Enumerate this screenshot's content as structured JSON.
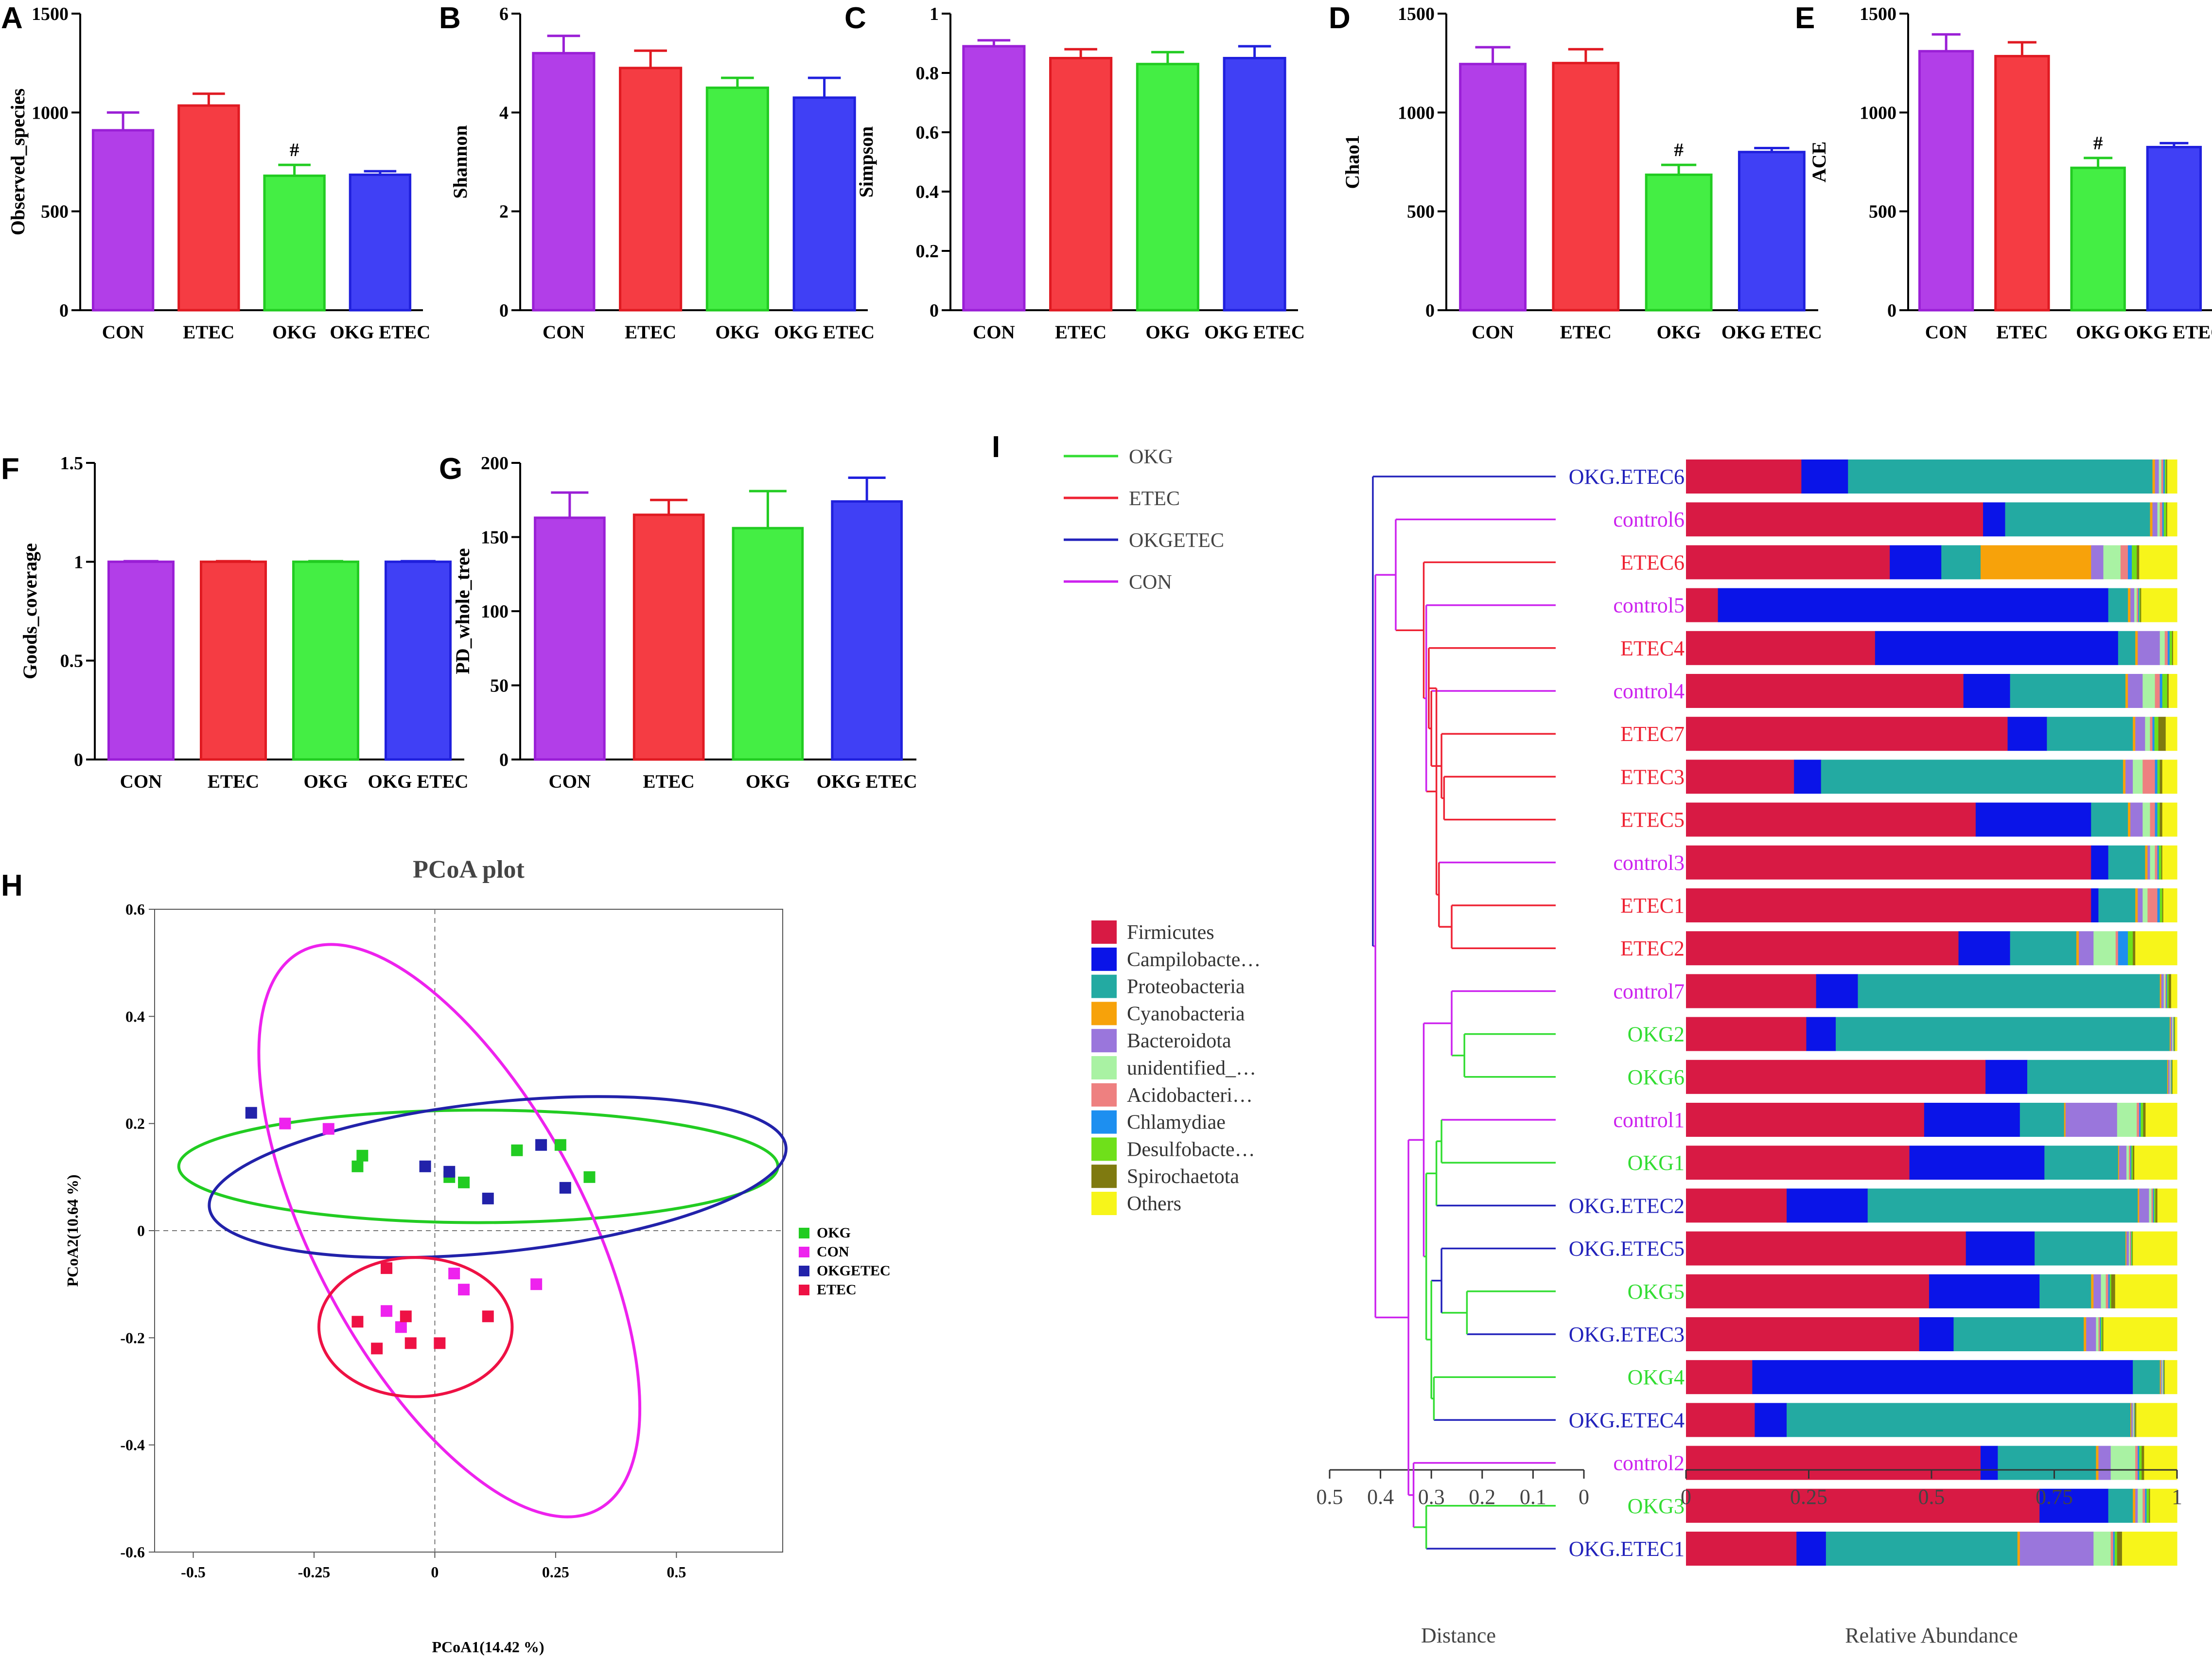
{
  "figure": {
    "panel_letters": [
      "A",
      "B",
      "C",
      "D",
      "E",
      "F",
      "G",
      "H",
      "I"
    ]
  },
  "chart_data": [
    {
      "panel": "A",
      "type": "bar",
      "ylabel": "Observed_species",
      "categories": [
        "CON",
        "ETEC",
        "OKG",
        "OKG ETEC"
      ],
      "values": [
        910,
        1035,
        680,
        685
      ],
      "errors": [
        90,
        60,
        55,
        18
      ],
      "ylim": [
        0,
        1500
      ],
      "yticks": [
        0,
        500,
        1000,
        1500
      ],
      "annotations": [
        "",
        "",
        "#",
        ""
      ]
    },
    {
      "panel": "B",
      "type": "bar",
      "ylabel": "Shannon",
      "categories": [
        "CON",
        "ETEC",
        "OKG",
        "OKG ETEC"
      ],
      "values": [
        5.2,
        4.9,
        4.5,
        4.3
      ],
      "errors": [
        0.35,
        0.35,
        0.2,
        0.4
      ],
      "ylim": [
        0,
        6
      ],
      "yticks": [
        0,
        2,
        4,
        6
      ],
      "annotations": [
        "",
        "",
        "",
        ""
      ]
    },
    {
      "panel": "C",
      "type": "bar",
      "ylabel": "Simpson",
      "categories": [
        "CON",
        "ETEC",
        "OKG",
        "OKG ETEC"
      ],
      "values": [
        0.89,
        0.85,
        0.83,
        0.85
      ],
      "errors": [
        0.02,
        0.03,
        0.04,
        0.04
      ],
      "ylim": [
        0,
        1.0
      ],
      "yticks": [
        0.0,
        0.2,
        0.4,
        0.6,
        0.8,
        1.0
      ],
      "annotations": [
        "",
        "",
        "",
        ""
      ]
    },
    {
      "panel": "D",
      "type": "bar",
      "ylabel": "Chao1",
      "categories": [
        "CON",
        "ETEC",
        "OKG",
        "OKG ETEC"
      ],
      "values": [
        1245,
        1250,
        685,
        800
      ],
      "errors": [
        85,
        70,
        50,
        20
      ],
      "ylim": [
        0,
        1500
      ],
      "yticks": [
        0,
        500,
        1000,
        1500
      ],
      "annotations": [
        "",
        "",
        "#",
        ""
      ]
    },
    {
      "panel": "E",
      "type": "bar",
      "ylabel": "ACE",
      "categories": [
        "CON",
        "ETEC",
        "OKG",
        "OKG ETEC"
      ],
      "values": [
        1310,
        1285,
        720,
        825
      ],
      "errors": [
        85,
        70,
        50,
        20
      ],
      "ylim": [
        0,
        1500
      ],
      "yticks": [
        0,
        500,
        1000,
        1500
      ],
      "annotations": [
        "",
        "",
        "#",
        ""
      ]
    },
    {
      "panel": "F",
      "type": "bar",
      "ylabel": "Goods_coverage",
      "categories": [
        "CON",
        "ETEC",
        "OKG",
        "OKG ETEC"
      ],
      "values": [
        1.0,
        1.0,
        1.0,
        1.0
      ],
      "errors": [
        0.003,
        0.003,
        0.003,
        0.003
      ],
      "ylim": [
        0,
        1.5
      ],
      "yticks": [
        0.0,
        0.5,
        1.0,
        1.5
      ],
      "annotations": [
        "",
        "",
        "",
        ""
      ]
    },
    {
      "panel": "G",
      "type": "bar",
      "ylabel": "PD_whole_tree",
      "categories": [
        "CON",
        "ETEC",
        "OKG",
        "OKG ETEC"
      ],
      "values": [
        163,
        165,
        156,
        174
      ],
      "errors": [
        17,
        10,
        25,
        16
      ],
      "ylim": [
        0,
        200
      ],
      "yticks": [
        0,
        50,
        100,
        150,
        200
      ],
      "annotations": [
        "",
        "",
        "",
        ""
      ]
    },
    {
      "panel": "H",
      "type": "scatter",
      "title": "PCoA plot",
      "xlabel": "PCoA1(14.42 %)",
      "ylabel": "PCoA2(10.64 %)",
      "xlim": [
        -0.58,
        0.72
      ],
      "ylim": [
        -0.6,
        0.6
      ],
      "xticks": [
        -0.5,
        -0.25,
        0,
        0.25,
        0.5
      ],
      "xtick_labels": [
        "-0.5",
        "-0.25",
        "0",
        "0.25",
        "0.5"
      ],
      "yticks": [
        -0.6,
        -0.4,
        -0.2,
        0,
        0.2,
        0.4,
        0.6
      ],
      "ytick_labels": [
        "-0.6",
        "-0.4",
        "-0.2",
        "0",
        "0.2",
        "0.4",
        "0.6"
      ],
      "series": [
        {
          "name": "OKG",
          "color": "#22cc22",
          "points": [
            [
              -0.15,
              0.14
            ],
            [
              -0.16,
              0.12
            ],
            [
              0.03,
              0.1
            ],
            [
              0.06,
              0.09
            ],
            [
              0.17,
              0.15
            ],
            [
              0.26,
              0.16
            ],
            [
              0.32,
              0.1
            ]
          ],
          "ellipse": {
            "cx": 0.09,
            "cy": 0.12,
            "rx": 0.62,
            "ry": 0.105,
            "angle": 0
          }
        },
        {
          "name": "CON",
          "color": "#ee22ee",
          "points": [
            [
              -0.31,
              0.2
            ],
            [
              -0.22,
              0.19
            ],
            [
              0.04,
              -0.08
            ],
            [
              0.06,
              -0.11
            ],
            [
              0.21,
              -0.1
            ],
            [
              -0.1,
              -0.15
            ],
            [
              -0.07,
              -0.18
            ]
          ],
          "ellipse": {
            "cx": 0.03,
            "cy": 0.0,
            "rx": 0.28,
            "ry": 0.59,
            "angle": -28
          }
        },
        {
          "name": "OKGETEC",
          "color": "#2222aa",
          "points": [
            [
              -0.38,
              0.22
            ],
            [
              -0.02,
              0.12
            ],
            [
              0.03,
              0.11
            ],
            [
              0.11,
              0.06
            ],
            [
              0.22,
              0.16
            ],
            [
              0.27,
              0.08
            ]
          ],
          "ellipse": {
            "cx": 0.13,
            "cy": 0.1,
            "rx": 0.6,
            "ry": 0.14,
            "angle": -6
          }
        },
        {
          "name": "ETEC",
          "color": "#ee1144",
          "points": [
            [
              -0.1,
              -0.07
            ],
            [
              -0.16,
              -0.17
            ],
            [
              -0.12,
              -0.22
            ],
            [
              -0.06,
              -0.16
            ],
            [
              -0.05,
              -0.21
            ],
            [
              0.01,
              -0.21
            ],
            [
              0.11,
              -0.16
            ]
          ],
          "ellipse": {
            "cx": -0.04,
            "cy": -0.18,
            "rx": 0.2,
            "ry": 0.13,
            "angle": 0
          }
        }
      ]
    },
    {
      "panel": "I",
      "type": "stacked-bar-dendrogram",
      "tree_legend": [
        {
          "name": "OKG",
          "color": "#33dd33"
        },
        {
          "name": "ETEC",
          "color": "#ee2233"
        },
        {
          "name": "OKGETEC",
          "color": "#2222bb"
        },
        {
          "name": "CON",
          "color": "#cc22ee"
        }
      ],
      "taxa": [
        {
          "name": "Firmicutes",
          "color": "#d81a44"
        },
        {
          "name": "Campilobacte…",
          "color": "#0a14e8"
        },
        {
          "name": "Proteobacteria",
          "color": "#23aaa2"
        },
        {
          "name": "Cyanobacteria",
          "color": "#f7a20a"
        },
        {
          "name": "Bacteroidota",
          "color": "#9a76dc"
        },
        {
          "name": "unidentified_…",
          "color": "#a9f2a3"
        },
        {
          "name": "Acidobacteri…",
          "color": "#ee8080"
        },
        {
          "name": "Chlamydiae",
          "color": "#1d8ff0"
        },
        {
          "name": "Desulfobacte…",
          "color": "#6fe01a"
        },
        {
          "name": "Spirochaetota",
          "color": "#7f7a10"
        },
        {
          "name": "Others",
          "color": "#f7f51a"
        }
      ],
      "xlabel": "Relative Abundance",
      "xticks": [
        0,
        0.25,
        0.5,
        0.75,
        1
      ],
      "xtick_labels": [
        "0",
        "0.25",
        "0.5",
        "0.75",
        "1"
      ],
      "distance_label": "Distance",
      "distance_ticks": [
        "0.5",
        "0.4",
        "0.3",
        "0.2",
        "0.1",
        "0"
      ],
      "samples": [
        {
          "name": "OKG.ETEC6",
          "group": "OKGETEC",
          "values": [
            0.235,
            0.095,
            0.62,
            0.005,
            0.008,
            0.005,
            0.004,
            0.003,
            0.003,
            0.002,
            0.02
          ]
        },
        {
          "name": "control6",
          "group": "CON",
          "values": [
            0.605,
            0.045,
            0.295,
            0.005,
            0.01,
            0.005,
            0.005,
            0.003,
            0.005,
            0.002,
            0.02
          ]
        },
        {
          "name": "ETEC6",
          "group": "ETEC",
          "values": [
            0.415,
            0.105,
            0.08,
            0.225,
            0.025,
            0.035,
            0.015,
            0.008,
            0.01,
            0.005,
            0.077
          ]
        },
        {
          "name": "control5",
          "group": "CON",
          "values": [
            0.065,
            0.795,
            0.04,
            0.005,
            0.008,
            0.005,
            0.003,
            0.002,
            0.002,
            0.002,
            0.073
          ]
        },
        {
          "name": "ETEC4",
          "group": "ETEC",
          "values": [
            0.385,
            0.495,
            0.035,
            0.005,
            0.045,
            0.01,
            0.006,
            0.004,
            0.005,
            0.002,
            0.008
          ]
        },
        {
          "name": "control4",
          "group": "CON",
          "values": [
            0.565,
            0.095,
            0.235,
            0.005,
            0.03,
            0.025,
            0.01,
            0.005,
            0.01,
            0.003,
            0.017
          ]
        },
        {
          "name": "ETEC7",
          "group": "ETEC",
          "values": [
            0.655,
            0.08,
            0.175,
            0.005,
            0.02,
            0.01,
            0.005,
            0.004,
            0.008,
            0.015,
            0.023
          ]
        },
        {
          "name": "ETEC3",
          "group": "ETEC",
          "values": [
            0.22,
            0.055,
            0.615,
            0.005,
            0.015,
            0.02,
            0.025,
            0.005,
            0.005,
            0.005,
            0.03
          ]
        },
        {
          "name": "ETEC5",
          "group": "ETEC",
          "values": [
            0.59,
            0.235,
            0.075,
            0.005,
            0.025,
            0.015,
            0.01,
            0.005,
            0.005,
            0.005,
            0.03
          ]
        },
        {
          "name": "control3",
          "group": "CON",
          "values": [
            0.825,
            0.035,
            0.075,
            0.005,
            0.005,
            0.01,
            0.005,
            0.003,
            0.005,
            0.002,
            0.03
          ]
        },
        {
          "name": "ETEC1",
          "group": "ETEC",
          "values": [
            0.825,
            0.015,
            0.075,
            0.005,
            0.01,
            0.01,
            0.02,
            0.005,
            0.005,
            0.002,
            0.028
          ]
        },
        {
          "name": "ETEC2",
          "group": "ETEC",
          "values": [
            0.555,
            0.105,
            0.135,
            0.005,
            0.03,
            0.045,
            0.005,
            0.02,
            0.01,
            0.005,
            0.085
          ]
        },
        {
          "name": "control7",
          "group": "CON",
          "values": [
            0.265,
            0.085,
            0.615,
            0.003,
            0.005,
            0.003,
            0.002,
            0.002,
            0.003,
            0.005,
            0.012
          ]
        },
        {
          "name": "OKG2",
          "group": "OKG",
          "values": [
            0.245,
            0.06,
            0.68,
            0.002,
            0.003,
            0.002,
            0.001,
            0.001,
            0.001,
            0.001,
            0.004
          ]
        },
        {
          "name": "OKG6",
          "group": "OKG",
          "values": [
            0.61,
            0.085,
            0.285,
            0.002,
            0.003,
            0.002,
            0.001,
            0.001,
            0.001,
            0.001,
            0.009
          ]
        },
        {
          "name": "control1",
          "group": "CON",
          "values": [
            0.485,
            0.195,
            0.09,
            0.003,
            0.105,
            0.04,
            0.005,
            0.003,
            0.005,
            0.005,
            0.064
          ]
        },
        {
          "name": "OKG1",
          "group": "OKG",
          "values": [
            0.455,
            0.275,
            0.15,
            0.002,
            0.015,
            0.005,
            0.003,
            0.002,
            0.003,
            0.003,
            0.087
          ]
        },
        {
          "name": "OKG.ETEC2",
          "group": "OKGETEC",
          "values": [
            0.205,
            0.165,
            0.55,
            0.003,
            0.02,
            0.005,
            0.003,
            0.002,
            0.003,
            0.004,
            0.04
          ]
        },
        {
          "name": "OKG.ETEC5",
          "group": "OKGETEC",
          "values": [
            0.57,
            0.14,
            0.185,
            0.002,
            0.005,
            0.002,
            0.002,
            0.001,
            0.002,
            0.001,
            0.09
          ]
        },
        {
          "name": "OKG5",
          "group": "OKG",
          "values": [
            0.495,
            0.225,
            0.105,
            0.005,
            0.015,
            0.01,
            0.005,
            0.003,
            0.003,
            0.008,
            0.126
          ]
        },
        {
          "name": "OKG.ETEC3",
          "group": "OKGETEC",
          "values": [
            0.475,
            0.07,
            0.265,
            0.005,
            0.02,
            0.005,
            0.003,
            0.002,
            0.003,
            0.002,
            0.15
          ]
        },
        {
          "name": "OKG4",
          "group": "OKG",
          "values": [
            0.135,
            0.775,
            0.055,
            0.002,
            0.002,
            0.002,
            0.001,
            0.001,
            0.001,
            0.001,
            0.025
          ]
        },
        {
          "name": "OKG.ETEC4",
          "group": "OKGETEC",
          "values": [
            0.14,
            0.065,
            0.7,
            0.002,
            0.003,
            0.002,
            0.001,
            0.001,
            0.001,
            0.002,
            0.083
          ]
        },
        {
          "name": "control2",
          "group": "CON",
          "values": [
            0.6,
            0.035,
            0.2,
            0.005,
            0.025,
            0.05,
            0.005,
            0.003,
            0.005,
            0.005,
            0.067
          ]
        },
        {
          "name": "OKG3",
          "group": "OKG",
          "values": [
            0.72,
            0.14,
            0.05,
            0.005,
            0.005,
            0.01,
            0.005,
            0.003,
            0.005,
            0.002,
            0.055
          ]
        },
        {
          "name": "OKG.ETEC1",
          "group": "OKGETEC",
          "values": [
            0.225,
            0.06,
            0.39,
            0.005,
            0.15,
            0.035,
            0.005,
            0.003,
            0.005,
            0.01,
            0.112
          ]
        }
      ]
    }
  ]
}
